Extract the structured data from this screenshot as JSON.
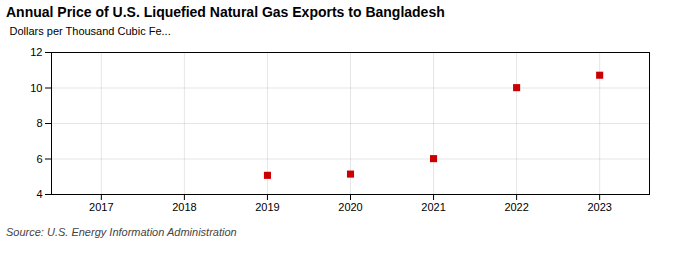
{
  "chart_data": {
    "type": "scatter",
    "title": "Annual Price of U.S. Liquefied Natural Gas Exports to Bangladesh",
    "ylabel": "Dollars per Thousand Cubic Fe...",
    "source": "Source: U.S. Energy Information Administration",
    "x": [
      2019,
      2020,
      2021,
      2022,
      2023
    ],
    "values": [
      5.08,
      5.15,
      6.02,
      10.02,
      10.72
    ],
    "color": "#CC0000",
    "marker": "square",
    "xlim": [
      2016.4,
      2023.6
    ],
    "xticks": [
      2017,
      2018,
      2019,
      2020,
      2021,
      2022,
      2023
    ],
    "ylim": [
      4,
      12
    ],
    "yticks": [
      4,
      6,
      8,
      10,
      12
    ],
    "grid": true
  }
}
